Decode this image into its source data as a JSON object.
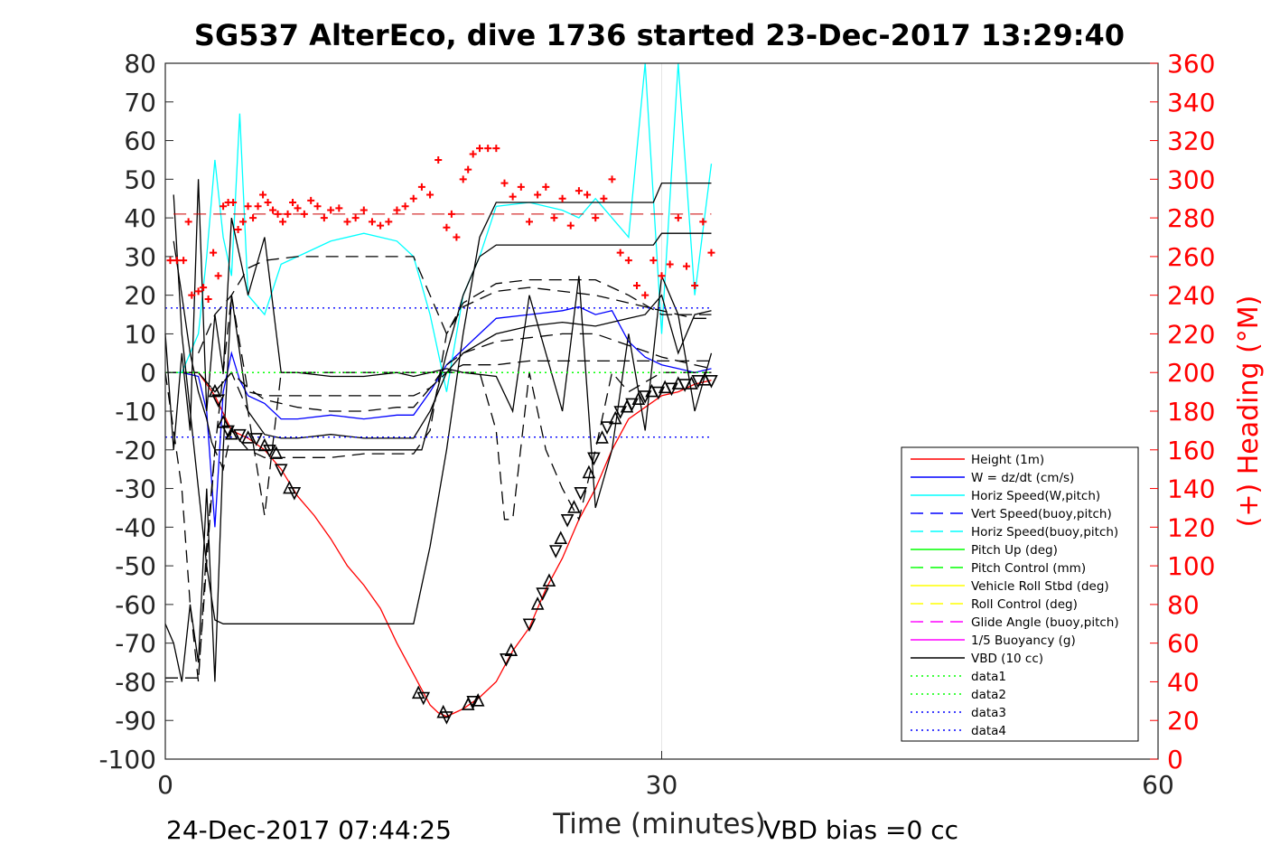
{
  "chart_data": {
    "type": "line",
    "title": "SG537 AlterEco, dive 1736 started 23-Dec-2017 13:29:40",
    "xlabel": "Time (minutes)",
    "ylabel": "",
    "ylabel_right": "(+) Heading (°M)",
    "xlim": [
      0,
      60
    ],
    "ylim": [
      -100,
      80
    ],
    "ylim_right": [
      0,
      360
    ],
    "x_ticks": [
      "0",
      "30",
      "60"
    ],
    "y_ticks": [
      "80",
      "70",
      "60",
      "50",
      "40",
      "30",
      "20",
      "10",
      "0",
      "-10",
      "-20",
      "-30",
      "-40",
      "-50",
      "-60",
      "-70",
      "-80",
      "-90",
      "-100"
    ],
    "y_ticks_right": [
      "360",
      "340",
      "320",
      "300",
      "280",
      "260",
      "240",
      "220",
      "200",
      "180",
      "160",
      "140",
      "120",
      "100",
      "80",
      "60",
      "40",
      "20",
      "0"
    ],
    "grid": "x-only",
    "legend_position": "lower-right",
    "footer_left": "24-Dec-2017 07:44:25",
    "footer_right": "VBD bias =0 cc",
    "colors": {
      "height": "#ff0000",
      "w": "#0000ff",
      "horiz_speed": "#00ffff",
      "pitch": "#00ff00",
      "roll": "#ffff00",
      "glide": "#ff00ff",
      "vbd": "#000000",
      "heading": "#ff0000",
      "data1": "#00ff00",
      "data2": "#00ff00",
      "data3": "#0000ff",
      "data4": "#0000ff"
    },
    "legend": [
      {
        "label": "Height (1m)",
        "color": "#ff0000",
        "style": "solid"
      },
      {
        "label": "W = dz/dt (cm/s)",
        "color": "#0000ff",
        "style": "solid"
      },
      {
        "label": "Horiz Speed(W,pitch)",
        "color": "#00ffff",
        "style": "solid"
      },
      {
        "label": "Vert Speed(buoy,pitch)",
        "color": "#0000ff",
        "style": "dashed"
      },
      {
        "label": "Horiz Speed(buoy,pitch)",
        "color": "#00ffff",
        "style": "dashed"
      },
      {
        "label": "Pitch Up (deg)",
        "color": "#00ff00",
        "style": "solid"
      },
      {
        "label": "Pitch Control (mm)",
        "color": "#00ff00",
        "style": "dashed"
      },
      {
        "label": "Vehicle Roll Stbd (deg)",
        "color": "#ffff00",
        "style": "solid"
      },
      {
        "label": "Roll Control (deg)",
        "color": "#ffff00",
        "style": "dashed"
      },
      {
        "label": "Glide Angle (buoy,pitch)",
        "color": "#ff00ff",
        "style": "dashed"
      },
      {
        "label": "1/5 Buoyancy (g)",
        "color": "#ff00ff",
        "style": "solid"
      },
      {
        "label": "VBD (10 cc)",
        "color": "#000000",
        "style": "solid"
      },
      {
        "label": "data1",
        "color": "#00ff00",
        "style": "dotted"
      },
      {
        "label": "data2",
        "color": "#00ff00",
        "style": "dotted"
      },
      {
        "label": "data3",
        "color": "#0000ff",
        "style": "dotted"
      },
      {
        "label": "data4",
        "color": "#0000ff",
        "style": "dotted"
      }
    ],
    "series": [
      {
        "key": "height",
        "name": "Height (1m)",
        "style": "solid",
        "x": [
          0,
          2,
          3,
          4,
          5,
          6,
          7,
          8,
          9,
          10,
          11,
          12,
          13,
          14,
          15,
          15.5,
          16,
          16.5,
          17,
          18,
          19,
          20,
          21,
          22,
          23,
          24,
          25,
          26,
          27,
          28,
          29,
          30,
          31,
          32,
          33
        ],
        "y": [
          0,
          0,
          -6,
          -15,
          -17,
          -20,
          -25,
          -32,
          -37,
          -43,
          -50,
          -55,
          -61,
          -70,
          -78,
          -82,
          -86,
          -88,
          -89,
          -87,
          -84,
          -80,
          -72,
          -66,
          -56,
          -48,
          -38,
          -30,
          -20,
          -12,
          -9,
          -6,
          -5,
          -3,
          -2
        ]
      },
      {
        "key": "w",
        "name": "W = dz/dt (cm/s)",
        "style": "solid",
        "x": [
          0,
          1,
          2,
          2.5,
          3,
          3.5,
          4,
          4.5,
          5,
          6,
          7,
          8,
          10,
          12,
          14,
          15,
          16,
          17,
          18,
          19,
          20,
          22,
          24,
          25,
          26,
          27,
          28,
          29,
          30,
          31,
          32,
          33
        ],
        "y": [
          0,
          0,
          -1,
          -10,
          -40,
          -5,
          5,
          -2,
          -6,
          -8,
          -12,
          -12,
          -11,
          -12,
          -11,
          -11,
          -5,
          2,
          6,
          10,
          14,
          15,
          16,
          17,
          15,
          16,
          8,
          4,
          2,
          1,
          0,
          1
        ]
      },
      {
        "key": "horiz_speed",
        "name": "Horiz Speed(W,pitch)",
        "style": "solid",
        "x": [
          0,
          1,
          2,
          2.5,
          3,
          3.5,
          4,
          4.5,
          5,
          6,
          7,
          8,
          10,
          12,
          14,
          15,
          16,
          17,
          18,
          19,
          20,
          22,
          24,
          25,
          26,
          27,
          28,
          29,
          30,
          31,
          32,
          33
        ],
        "y": [
          0,
          0,
          10,
          30,
          55,
          35,
          25,
          67,
          20,
          15,
          28,
          30,
          34,
          36,
          34,
          30,
          15,
          -5,
          20,
          30,
          43,
          44,
          42,
          40,
          45,
          40,
          35,
          80,
          10,
          80,
          20,
          54
        ]
      },
      {
        "key": "vert_speed_buoy",
        "name": "Vert Speed(buoy,pitch)",
        "style": "dashed",
        "x": [
          2,
          3,
          4,
          5,
          6,
          8,
          10,
          12,
          14,
          15,
          16,
          17,
          18,
          20,
          22,
          24,
          26,
          28,
          30,
          32,
          33
        ],
        "y": [
          0,
          -5,
          0,
          -4,
          -7,
          -9,
          -10,
          -10,
          -9,
          -9,
          -4,
          2,
          5,
          8,
          9,
          10,
          10,
          7,
          4,
          2,
          1
        ]
      },
      {
        "key": "horiz_speed_buoy",
        "name": "Horiz Speed(buoy,pitch)",
        "style": "dashed",
        "x": [
          2,
          3,
          4,
          5,
          6,
          8,
          10,
          12,
          14,
          15,
          16,
          17,
          18,
          20,
          22,
          24,
          26,
          28,
          30,
          32,
          33
        ],
        "y": [
          5,
          15,
          20,
          27,
          29,
          30,
          30,
          30,
          30,
          30,
          20,
          10,
          18,
          23,
          24,
          24,
          24,
          20,
          15,
          15,
          15
        ]
      },
      {
        "key": "pitch_up",
        "name": "Pitch Up (deg)",
        "style": "solid",
        "x": [
          0,
          0.5,
          1,
          1.5,
          2,
          2.5,
          3,
          3.5,
          4,
          5,
          6,
          7,
          8,
          10,
          12,
          14,
          15,
          16,
          17,
          18,
          20,
          22,
          24,
          26,
          28,
          29,
          30,
          31,
          32,
          33
        ],
        "y": [
          -65,
          -70,
          -80,
          -60,
          -75,
          -30,
          -80,
          -20,
          20,
          -10,
          -16,
          -17,
          -17,
          -16,
          -17,
          -17,
          -17,
          -10,
          0,
          5,
          10,
          12,
          13,
          12,
          14,
          15,
          20,
          5,
          15,
          16
        ]
      },
      {
        "key": "pitch_control",
        "name": "Pitch Control (mm)",
        "style": "dashed",
        "x": [
          0,
          1,
          2,
          3,
          4,
          5,
          6,
          8,
          10,
          12,
          14,
          15,
          16,
          17,
          18,
          20,
          22,
          24,
          26,
          28,
          30,
          32,
          33
        ],
        "y": [
          -79,
          -79,
          -79,
          -20,
          20,
          -5,
          -6,
          -6,
          -6,
          -6,
          -6,
          -6,
          -4,
          0,
          2,
          2,
          3,
          3,
          3,
          3,
          3,
          3,
          3
        ]
      },
      {
        "key": "vehicle_roll",
        "name": "Vehicle Roll Stbd (deg)",
        "style": "solid",
        "x": [
          0,
          0.5,
          1,
          1.5,
          2,
          2.5,
          3,
          3.5,
          4,
          5,
          6,
          7,
          8,
          10,
          12,
          14,
          15,
          16,
          17,
          18,
          20,
          21,
          22,
          23,
          24,
          25,
          26,
          27,
          28,
          29,
          30,
          31,
          32,
          33
        ],
        "y": [
          10,
          -20,
          5,
          -15,
          50,
          -10,
          15,
          0,
          40,
          20,
          35,
          0,
          0,
          -1,
          -1,
          0,
          -1,
          0,
          1,
          0,
          -1,
          -10,
          20,
          5,
          -10,
          25,
          -35,
          -20,
          10,
          -15,
          25,
          15,
          -10,
          5
        ]
      },
      {
        "key": "roll_control",
        "name": "Roll Control (deg)",
        "style": "dashed",
        "x": [
          0,
          1,
          2,
          3,
          4,
          5,
          6,
          7,
          8,
          10,
          12,
          14,
          16,
          18,
          19,
          20,
          20.5,
          21,
          22,
          23,
          24,
          25,
          26,
          27,
          28,
          30,
          32,
          33
        ],
        "y": [
          0,
          0,
          0,
          -5,
          0,
          -10,
          -37,
          0,
          0,
          0,
          0,
          0,
          0,
          0,
          0,
          -15,
          -38,
          -38,
          0,
          -20,
          -30,
          -38,
          -20,
          0,
          -5,
          0,
          0,
          0
        ]
      },
      {
        "key": "glide_angle",
        "name": "Glide Angle (buoy,pitch)",
        "style": "dashed",
        "x": [
          0,
          1,
          1.5,
          2,
          2.5,
          3,
          3.5,
          4,
          5,
          6,
          8,
          10,
          12,
          14,
          15,
          16,
          17,
          18,
          20,
          22,
          24,
          26,
          28,
          30,
          32,
          33
        ],
        "y": [
          0,
          -30,
          -60,
          -80,
          -45,
          -20,
          -25,
          -15,
          -20,
          -22,
          -22,
          -22,
          -21,
          -21,
          -21,
          -15,
          10,
          17,
          21,
          22,
          21,
          20,
          18,
          16,
          14,
          14
        ]
      },
      {
        "key": "buoyancy",
        "name": "1/5 Buoyancy (g)",
        "style": "solid",
        "x": [
          0.5,
          1,
          1.5,
          2,
          2.5,
          3,
          3.5,
          5,
          10,
          14,
          15,
          16,
          17,
          18,
          19,
          20,
          25,
          28,
          29.5,
          30,
          33
        ],
        "y": [
          46,
          10,
          -10,
          -30,
          -50,
          -64,
          -65,
          -65,
          -65,
          -65,
          -65,
          -45,
          -20,
          10,
          35,
          44,
          44,
          44,
          44,
          49,
          49
        ]
      },
      {
        "key": "vbd",
        "name": "VBD (10 cc)",
        "style": "solid",
        "x": [
          0.5,
          1,
          1.5,
          2,
          2.5,
          2.8,
          3,
          5,
          10,
          15,
          15.5,
          16,
          17,
          18,
          19,
          20,
          25,
          28,
          29.5,
          30,
          33
        ],
        "y": [
          34,
          20,
          5,
          -5,
          -12,
          -18,
          -20,
          -20,
          -20,
          -20,
          -20,
          -12,
          5,
          20,
          30,
          33,
          33,
          33,
          33,
          36,
          36
        ]
      },
      {
        "key": "data1",
        "name": "data1",
        "style": "dotted",
        "x": [
          0,
          33
        ],
        "y": [
          0,
          0
        ]
      },
      {
        "key": "data2",
        "name": "data2",
        "style": "dotted",
        "x": [
          0,
          33
        ],
        "y": [
          0,
          0
        ]
      },
      {
        "key": "data3",
        "name": "data3",
        "style": "dotted",
        "x": [
          0,
          33
        ],
        "y": [
          16.7,
          16.7
        ]
      },
      {
        "key": "data4",
        "name": "data4",
        "style": "dotted",
        "x": [
          0,
          33
        ],
        "y": [
          -16.7,
          -16.7
        ]
      }
    ],
    "heading_series": {
      "name": "(+) Heading (°M)",
      "marker": "+",
      "reference_heading": 282,
      "x": [
        0.3,
        0.7,
        1.1,
        1.4,
        1.6,
        2.0,
        2.3,
        2.6,
        2.9,
        3.2,
        3.5,
        3.8,
        4.1,
        4.4,
        4.7,
        5.0,
        5.3,
        5.6,
        5.9,
        6.2,
        6.5,
        6.8,
        7.1,
        7.4,
        7.7,
        8.0,
        8.4,
        8.8,
        9.2,
        9.6,
        10.0,
        10.5,
        11.0,
        11.5,
        12.0,
        12.5,
        13.0,
        13.5,
        14.0,
        14.5,
        15.0,
        15.5,
        16.0,
        16.5,
        17.0,
        17.3,
        17.6,
        18.0,
        18.3,
        18.6,
        19.0,
        19.5,
        20.0,
        20.5,
        21.0,
        21.5,
        22.0,
        22.5,
        23.0,
        23.5,
        24.0,
        24.5,
        25.0,
        25.5,
        26.0,
        26.5,
        27.0,
        27.5,
        28.0,
        28.5,
        29.0,
        29.5,
        30.0,
        30.5,
        31.0,
        31.5,
        32.0,
        32.5,
        33.0
      ],
      "y": [
        258,
        258,
        258,
        278,
        240,
        242,
        244,
        238,
        262,
        250,
        286,
        288,
        288,
        274,
        278,
        286,
        280,
        286,
        292,
        288,
        284,
        282,
        278,
        282,
        288,
        285,
        282,
        289,
        286,
        280,
        284,
        285,
        278,
        280,
        284,
        278,
        276,
        278,
        284,
        286,
        290,
        296,
        292,
        310,
        275,
        282,
        270,
        300,
        305,
        313,
        316,
        316,
        316,
        298,
        291,
        296,
        278,
        292,
        296,
        280,
        290,
        276,
        294,
        292,
        280,
        290,
        300,
        262,
        258,
        245,
        240,
        258,
        250,
        256,
        280,
        255,
        245,
        278,
        262
      ]
    },
    "depth_markers": {
      "marker": "triangle",
      "x": [
        3.0,
        3.2,
        3.5,
        3.8,
        4.0,
        4.5,
        5.0,
        5.5,
        6.0,
        6.3,
        6.7,
        7.0,
        7.5,
        7.8,
        15.3,
        15.6,
        16.8,
        17.0,
        18.3,
        18.6,
        18.9,
        20.6,
        20.9,
        22.0,
        22.5,
        22.8,
        23.2,
        23.6,
        23.9,
        24.3,
        24.7,
        25.1,
        25.6,
        25.9,
        26.4,
        26.7,
        27.2,
        27.5,
        27.9,
        28.2,
        28.6,
        29.0,
        29.4,
        29.8,
        30.2,
        30.6,
        31.0,
        31.4,
        31.8,
        32.2,
        32.6,
        33.0
      ],
      "y": [
        -5,
        -7,
        -13,
        -15,
        -16,
        -16,
        -17,
        -17,
        -19,
        -20,
        -21,
        -25,
        -30,
        -31,
        -83,
        -84,
        -88,
        -89,
        -86,
        -85,
        -85,
        -74,
        -72,
        -65,
        -60,
        -57,
        -54,
        -46,
        -43,
        -38,
        -35,
        -31,
        -26,
        -22,
        -17,
        -14,
        -12,
        -10,
        -9,
        -8,
        -7,
        -6,
        -5,
        -5,
        -4,
        -4,
        -3,
        -3,
        -3,
        -2,
        -2,
        -2
      ]
    }
  }
}
